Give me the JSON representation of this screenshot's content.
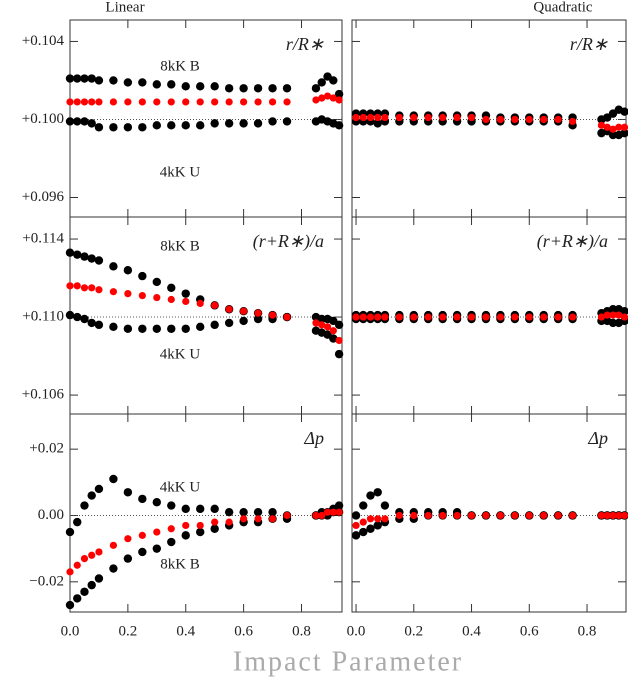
{
  "figure": {
    "xlabel": "Impact Parameter"
  },
  "chart_data": [
    {
      "type": "scatter",
      "title": "Linear",
      "label": "r/R∗",
      "annotations": [
        "8kK B",
        "4kK U"
      ],
      "x": [
        0.0,
        0.025,
        0.05,
        0.075,
        0.1,
        0.15,
        0.2,
        0.25,
        0.3,
        0.35,
        0.4,
        0.45,
        0.5,
        0.55,
        0.6,
        0.65,
        0.7,
        0.75,
        0.85,
        0.87,
        0.89,
        0.91,
        0.93
      ],
      "series": [
        {
          "color": "#000000",
          "values": [
            0.1021,
            0.1021,
            0.1021,
            0.1021,
            0.102,
            0.102,
            0.1019,
            0.1019,
            0.1018,
            0.1018,
            0.1017,
            0.1017,
            0.1017,
            0.1016,
            0.1016,
            0.1016,
            0.1016,
            0.1016,
            0.1016,
            0.1019,
            0.1022,
            0.102,
            0.1013
          ]
        },
        {
          "color": "#000000",
          "values": [
            0.0999,
            0.0999,
            0.0999,
            0.0998,
            0.0996,
            0.0996,
            0.0996,
            0.0996,
            0.0997,
            0.0997,
            0.0997,
            0.0997,
            0.0998,
            0.0998,
            0.0998,
            0.0998,
            0.0999,
            0.0999,
            0.0999,
            0.1,
            0.0999,
            0.0998,
            0.0997
          ]
        },
        {
          "color": "#ff0000",
          "values": [
            0.1009,
            0.1009,
            0.1009,
            0.1009,
            0.1009,
            0.1009,
            0.1009,
            0.1009,
            0.1009,
            0.1009,
            0.1009,
            0.1009,
            0.1009,
            0.1009,
            0.1009,
            0.1009,
            0.1009,
            0.1009,
            0.101,
            0.1011,
            0.1012,
            0.1011,
            0.101
          ]
        }
      ],
      "refline": 0.1,
      "xlim": [
        0,
        0.94
      ],
      "ylim": [
        0.095,
        0.1051
      ],
      "xticks": [
        0,
        0.2,
        0.4,
        0.6,
        0.8
      ],
      "yticks": [
        {
          "value": 0.104,
          "label": "+0.104"
        },
        {
          "value": 0.1,
          "label": "+0.100"
        },
        {
          "value": 0.096,
          "label": "+0.096"
        }
      ]
    },
    {
      "type": "scatter",
      "title": "Quadratic",
      "label": "r/R∗",
      "x": [
        0.0,
        0.025,
        0.05,
        0.075,
        0.1,
        0.15,
        0.2,
        0.25,
        0.3,
        0.35,
        0.4,
        0.45,
        0.5,
        0.55,
        0.6,
        0.65,
        0.7,
        0.75,
        0.85,
        0.87,
        0.89,
        0.91,
        0.93
      ],
      "series": [
        {
          "color": "#000000",
          "values": [
            0.1003,
            0.1003,
            0.1003,
            0.1003,
            0.1003,
            0.1002,
            0.1002,
            0.1002,
            0.1002,
            0.1002,
            0.1002,
            0.1002,
            0.1001,
            0.1001,
            0.1001,
            0.1001,
            0.1001,
            0.1001,
            0.1,
            0.1001,
            0.1003,
            0.1005,
            0.1004
          ]
        },
        {
          "color": "#000000",
          "values": [
            0.0999,
            0.0999,
            0.0999,
            0.0998,
            0.0999,
            0.0999,
            0.0999,
            0.0999,
            0.0999,
            0.0999,
            0.0999,
            0.0999,
            0.0999,
            0.0999,
            0.0999,
            0.0999,
            0.0999,
            0.0997,
            0.0993,
            0.0994,
            0.0992,
            0.0992,
            0.0993
          ]
        },
        {
          "color": "#ff0000",
          "values": [
            0.1001,
            0.1001,
            0.1001,
            0.1001,
            0.1001,
            0.1001,
            0.1001,
            0.1001,
            0.1001,
            0.1001,
            0.1001,
            0.1,
            0.1,
            0.1,
            0.1,
            0.1,
            0.1,
            0.0999,
            0.0997,
            0.0996,
            0.0995,
            0.0996,
            0.0996
          ]
        }
      ],
      "refline": 0.1,
      "xlim": [
        -0.014,
        0.935
      ],
      "ylim": [
        0.095,
        0.1051
      ],
      "xticks": [
        0,
        0.2,
        0.4,
        0.6,
        0.8
      ],
      "yticks": [
        0.104,
        0.1,
        0.096
      ]
    },
    {
      "type": "scatter",
      "label": "(r+R∗)/a",
      "annotations": [
        "8kK B",
        "4kK U"
      ],
      "x": [
        0.0,
        0.025,
        0.05,
        0.075,
        0.1,
        0.15,
        0.2,
        0.25,
        0.3,
        0.35,
        0.4,
        0.45,
        0.5,
        0.55,
        0.6,
        0.65,
        0.7,
        0.75,
        0.85,
        0.87,
        0.89,
        0.91,
        0.93
      ],
      "series": [
        {
          "color": "#000000",
          "values": [
            0.1133,
            0.1132,
            0.1131,
            0.113,
            0.1129,
            0.1126,
            0.1124,
            0.1121,
            0.1118,
            0.1115,
            0.1112,
            0.1109,
            0.1106,
            0.1104,
            0.1103,
            0.1102,
            0.1101,
            0.11,
            0.11,
            0.1099,
            0.1099,
            0.1098,
            0.1096
          ]
        },
        {
          "color": "#000000",
          "values": [
            0.1101,
            0.11,
            0.1099,
            0.1097,
            0.1096,
            0.1095,
            0.1094,
            0.1094,
            0.1094,
            0.1094,
            0.1094,
            0.1095,
            0.1096,
            0.1097,
            0.1098,
            0.1099,
            0.1099,
            0.11,
            0.1093,
            0.1092,
            0.1091,
            0.1089,
            0.1081
          ]
        },
        {
          "color": "#ff0000",
          "values": [
            0.1116,
            0.1116,
            0.1115,
            0.1115,
            0.1114,
            0.1113,
            0.1112,
            0.1111,
            0.111,
            0.1109,
            0.1108,
            0.1107,
            0.1106,
            0.1104,
            0.1103,
            0.1102,
            0.1101,
            0.11,
            0.1097,
            0.1096,
            0.1095,
            0.1093,
            0.1088
          ]
        }
      ],
      "refline": 0.11,
      "xlim": [
        0,
        0.94
      ],
      "ylim": [
        0.10503,
        0.11513
      ],
      "xticks": [
        0,
        0.2,
        0.4,
        0.6,
        0.8
      ],
      "yticks": [
        {
          "value": 0.114,
          "label": "+0.114"
        },
        {
          "value": 0.11,
          "label": "+0.110"
        },
        {
          "value": 0.106,
          "label": "+0.106"
        }
      ]
    },
    {
      "type": "scatter",
      "label": "(r+R∗)/a",
      "x": [
        0.0,
        0.025,
        0.05,
        0.075,
        0.1,
        0.15,
        0.2,
        0.25,
        0.3,
        0.35,
        0.4,
        0.45,
        0.5,
        0.55,
        0.6,
        0.65,
        0.7,
        0.75,
        0.85,
        0.87,
        0.89,
        0.91,
        0.93
      ],
      "series": [
        {
          "color": "#000000",
          "values": [
            0.1101,
            0.1101,
            0.1101,
            0.1101,
            0.1101,
            0.1101,
            0.1101,
            0.1101,
            0.1101,
            0.1101,
            0.1101,
            0.1101,
            0.1101,
            0.1101,
            0.1101,
            0.1101,
            0.1101,
            0.1101,
            0.1102,
            0.1103,
            0.1104,
            0.1104,
            0.1103
          ]
        },
        {
          "color": "#000000",
          "values": [
            0.1099,
            0.1099,
            0.1099,
            0.1099,
            0.1099,
            0.1099,
            0.1099,
            0.1099,
            0.1099,
            0.1099,
            0.1099,
            0.1099,
            0.1099,
            0.1099,
            0.1099,
            0.1099,
            0.1099,
            0.1099,
            0.1098,
            0.1098,
            0.1097,
            0.1097,
            0.1098
          ]
        },
        {
          "color": "#ff0000",
          "values": [
            0.11,
            0.11,
            0.11,
            0.11,
            0.11,
            0.11,
            0.11,
            0.11,
            0.11,
            0.11,
            0.11,
            0.11,
            0.11,
            0.11,
            0.11,
            0.11,
            0.11,
            0.11,
            0.11,
            0.1101,
            0.1101,
            0.1101,
            0.11
          ]
        }
      ],
      "refline": 0.11,
      "xlim": [
        -0.014,
        0.935
      ],
      "ylim": [
        0.10503,
        0.11513
      ],
      "xticks": [
        0,
        0.2,
        0.4,
        0.6,
        0.8
      ],
      "yticks": [
        0.114,
        0.11,
        0.106
      ]
    },
    {
      "type": "scatter",
      "label": "Δp",
      "annotations": [
        "4kK U",
        "8kK B"
      ],
      "x": [
        0.0,
        0.025,
        0.05,
        0.075,
        0.1,
        0.15,
        0.2,
        0.25,
        0.3,
        0.35,
        0.4,
        0.45,
        0.5,
        0.55,
        0.6,
        0.65,
        0.7,
        0.75,
        0.85,
        0.87,
        0.89,
        0.91,
        0.93
      ],
      "series": [
        {
          "color": "#000000",
          "values": [
            -0.005,
            -0.002,
            0.003,
            0.006,
            0.008,
            0.011,
            0.007,
            0.005,
            0.004,
            0.003,
            0.002,
            0.002,
            0.002,
            0.001,
            0.001,
            0.001,
            0.001,
            0.0,
            0.0,
            0.001,
            0.001,
            0.002,
            0.003
          ]
        },
        {
          "color": "#000000",
          "values": [
            -0.027,
            -0.025,
            -0.023,
            -0.021,
            -0.019,
            -0.016,
            -0.013,
            -0.011,
            -0.01,
            -0.008,
            -0.006,
            -0.005,
            -0.004,
            -0.003,
            -0.002,
            -0.002,
            -0.001,
            -0.001,
            0.0,
            0.0,
            0.0,
            0.001,
            0.001
          ]
        },
        {
          "color": "#ff0000",
          "values": [
            -0.017,
            -0.015,
            -0.013,
            -0.012,
            -0.011,
            -0.009,
            -0.007,
            -0.006,
            -0.005,
            -0.004,
            -0.003,
            -0.003,
            -0.002,
            -0.002,
            -0.001,
            -0.001,
            -0.001,
            0.0,
            0.0,
            0.0,
            0.001,
            0.001,
            0.001
          ]
        }
      ],
      "refline": 0,
      "xlim": [
        0,
        0.94
      ],
      "ylim": [
        -0.0291,
        0.0306
      ],
      "xticks": [
        {
          "value": 0,
          "label": "0.0"
        },
        0.2,
        0.4,
        0.6,
        0.8
      ],
      "yticks": [
        {
          "value": 0.02,
          "label": "+0.02"
        },
        {
          "value": 0,
          "label": "0.00"
        },
        {
          "value": -0.02,
          "label": "−0.02"
        }
      ]
    },
    {
      "type": "scatter",
      "label": "Δp",
      "x": [
        0.0,
        0.025,
        0.05,
        0.075,
        0.1,
        0.15,
        0.2,
        0.25,
        0.3,
        0.35,
        0.4,
        0.45,
        0.5,
        0.55,
        0.6,
        0.65,
        0.7,
        0.75,
        0.85,
        0.87,
        0.89,
        0.91,
        0.93
      ],
      "series": [
        {
          "color": "#000000",
          "values": [
            0.0,
            0.003,
            0.006,
            0.007,
            0.003,
            0.001,
            0.001,
            0.001,
            0.001,
            0.001,
            0.0,
            0.0,
            0.0,
            0.0,
            0.0,
            0.0,
            0.0,
            0.0,
            0.0,
            0.0,
            0.0,
            0.0,
            0.0
          ]
        },
        {
          "color": "#000000",
          "values": [
            -0.006,
            -0.005,
            -0.004,
            -0.003,
            -0.002,
            -0.001,
            -0.001,
            0.0,
            0.0,
            0.0,
            0.0,
            0.0,
            0.0,
            0.0,
            0.0,
            0.0,
            0.0,
            0.0,
            0.0,
            0.0,
            0.0,
            0.0,
            0.0
          ]
        },
        {
          "color": "#ff0000",
          "values": [
            -0.003,
            -0.002,
            -0.001,
            -0.001,
            -0.001,
            0.0,
            0.0,
            0.0,
            0.0,
            0.0,
            0.0,
            0.0,
            0.0,
            0.0,
            0.0,
            0.0,
            0.0,
            0.0,
            0.0,
            0.0,
            0.0,
            0.0,
            0.0
          ]
        }
      ],
      "refline": 0,
      "xlim": [
        -0.014,
        0.935
      ],
      "ylim": [
        -0.0291,
        0.0306
      ],
      "xticks": [
        {
          "value": 0,
          "label": "0.0"
        },
        0.2,
        0.4,
        0.6,
        0.8
      ],
      "yticks": [
        0.02,
        0,
        -0.02
      ]
    }
  ]
}
